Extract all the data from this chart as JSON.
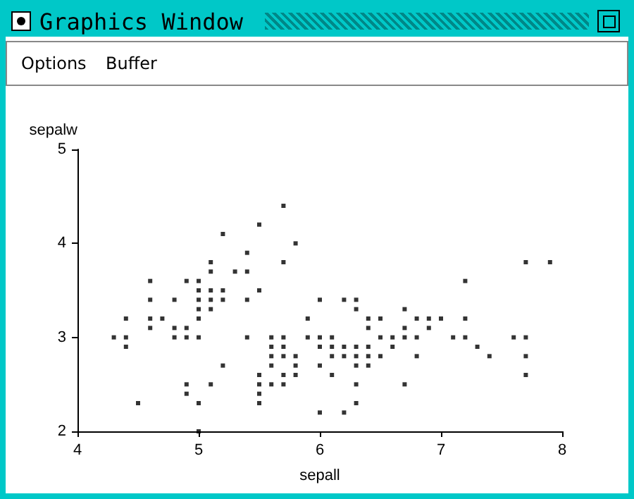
{
  "chart_data": {
    "type": "scatter",
    "xlabel": "sepall",
    "ylabel": "sepalw",
    "annotations": [
      "Graphics Window",
      "Options",
      "Buffer"
    ],
    "x": [
      5.1,
      4.9,
      4.7,
      4.6,
      5.0,
      5.4,
      4.6,
      5.0,
      4.4,
      4.9,
      5.4,
      4.8,
      4.8,
      4.3,
      5.8,
      5.7,
      5.7,
      5.1,
      5.4,
      5.1,
      4.6,
      5.1,
      5.0,
      5.2,
      5.2,
      4.8,
      5.2,
      5.5,
      5.0,
      5.5,
      4.9,
      4.4,
      5.1,
      5.0,
      4.5,
      4.4,
      4.6,
      5.3,
      5.0,
      7.0,
      6.4,
      6.9,
      5.5,
      6.5,
      5.7,
      6.3,
      4.9,
      6.6,
      5.2,
      5.0,
      5.9,
      6.0,
      6.1,
      5.6,
      6.7,
      5.6,
      5.8,
      6.2,
      5.6,
      5.9,
      6.1,
      6.3,
      6.4,
      6.6,
      6.8,
      6.7,
      6.0,
      5.7,
      5.5,
      6.0,
      5.4,
      6.0,
      6.3,
      5.5,
      5.5,
      6.1,
      5.8,
      5.0,
      5.6,
      5.7,
      5.7,
      6.2,
      5.1,
      7.1,
      6.3,
      6.5,
      7.6,
      4.9,
      7.3,
      6.7,
      7.2,
      6.5,
      6.4,
      6.8,
      5.7,
      5.8,
      7.7,
      7.7,
      6.9,
      5.6,
      7.7,
      6.3,
      6.7,
      7.2,
      6.2,
      6.4,
      7.2,
      7.4,
      7.9,
      6.3,
      6.1,
      7.7,
      6.3,
      6.4,
      6.0,
      6.8,
      6.2
    ],
    "values": [
      3.5,
      3.0,
      3.2,
      3.1,
      3.6,
      3.9,
      3.4,
      3.4,
      2.9,
      3.1,
      3.7,
      3.4,
      3.0,
      3.0,
      4.0,
      4.4,
      3.8,
      3.8,
      3.4,
      3.7,
      3.6,
      3.3,
      3.0,
      3.5,
      3.4,
      3.1,
      4.1,
      4.2,
      3.2,
      3.5,
      3.6,
      3.0,
      3.4,
      3.5,
      2.3,
      3.2,
      3.2,
      3.7,
      3.3,
      3.2,
      3.2,
      3.1,
      2.3,
      2.8,
      2.8,
      3.3,
      2.4,
      2.9,
      2.7,
      2.0,
      3.0,
      2.2,
      2.9,
      2.9,
      3.1,
      3.0,
      2.7,
      2.2,
      2.5,
      3.2,
      2.8,
      2.5,
      2.9,
      3.0,
      2.8,
      3.0,
      2.9,
      2.6,
      2.4,
      2.7,
      3.0,
      3.4,
      2.3,
      2.5,
      2.6,
      3.0,
      2.6,
      2.3,
      2.7,
      3.0,
      2.9,
      2.9,
      2.5,
      3.0,
      2.9,
      3.0,
      3.0,
      2.5,
      2.9,
      2.5,
      3.6,
      3.2,
      2.7,
      3.0,
      2.5,
      2.8,
      3.8,
      2.6,
      3.2,
      2.8,
      2.8,
      2.7,
      3.3,
      3.2,
      2.8,
      2.8,
      3.0,
      2.8,
      3.8,
      2.8,
      2.6,
      3.0,
      3.4,
      3.1,
      3.0,
      3.2,
      3.4
    ],
    "color": "#000000",
    "marker": "square",
    "grid": false,
    "xlim": [
      4,
      8
    ],
    "xticks": [
      4,
      5,
      6,
      7,
      8
    ],
    "ylim": [
      2,
      5
    ],
    "yticks": [
      2,
      3,
      4,
      5
    ]
  }
}
